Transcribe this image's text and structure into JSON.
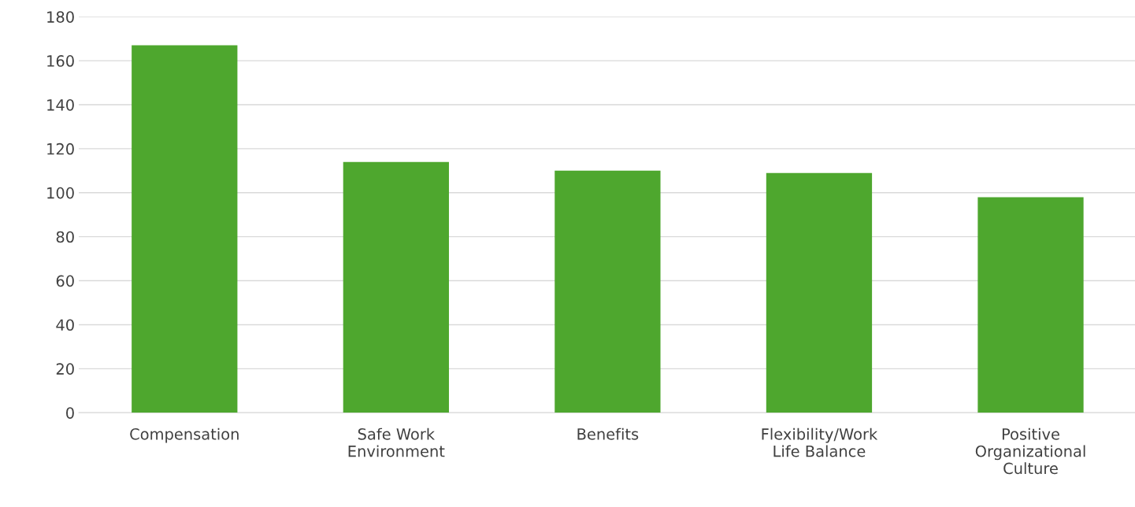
{
  "chart_data": {
    "type": "bar",
    "categories": [
      "Compensation",
      "Safe Work\nEnvironment",
      "Benefits",
      "Flexibility/Work\nLife Balance",
      "Positive\nOrganizational\nCulture"
    ],
    "values": [
      167,
      114,
      110,
      109,
      98
    ],
    "color": "#4ea72e",
    "ylim": [
      0,
      180
    ],
    "yticks": [
      0,
      20,
      40,
      60,
      80,
      100,
      120,
      140,
      160,
      180
    ],
    "grid": "y"
  }
}
